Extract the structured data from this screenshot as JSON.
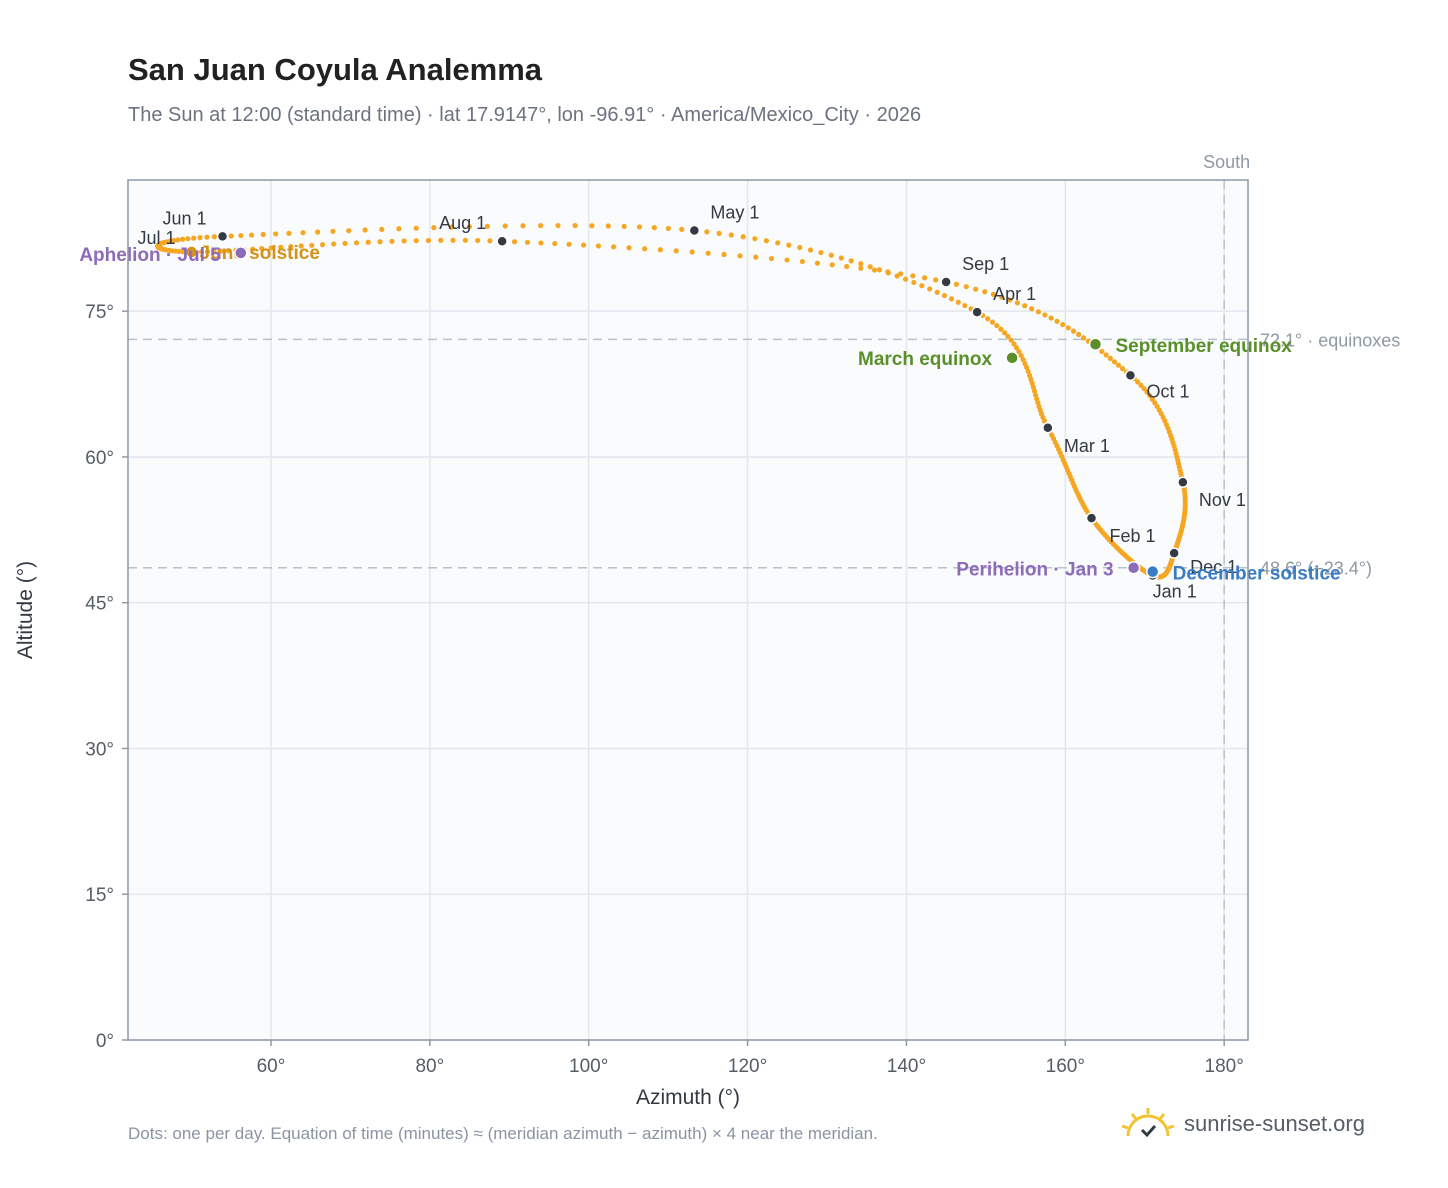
{
  "title": "San Juan Coyula Analemma",
  "subtitle": "The Sun at 12:00 (standard time) · lat 17.9147°, lon -96.91° · America/Mexico_City · 2026",
  "footnote": "Dots: one per day. Equation of time (minutes) ≈ (meridian azimuth − azimuth) × 4 near the meridian.",
  "brand": {
    "name": "sunrise-sunset.org",
    "icon": "sun-logo-icon",
    "color": "#f2c230"
  },
  "colors": {
    "analemma": "#f5a623",
    "month_marker": "#333a44",
    "equinox": "#5a8f29",
    "solstice_june": "#d4921a",
    "solstice_december": "#3a7cc3",
    "apsis": "#8e6bb8",
    "reference_line": "#b7c3cc",
    "plot_bg": "#f9fbfd",
    "grid": "#e3e8ee",
    "axis": "#8e99a6"
  },
  "chart_data": {
    "type": "scatter",
    "title": "San Juan Coyula Analemma",
    "xlabel": "Azimuth (°)",
    "ylabel": "Altitude (°)",
    "xlim": [
      42,
      183
    ],
    "ylim": [
      0,
      88.5
    ],
    "xticks": [
      60,
      80,
      100,
      120,
      140,
      160,
      180
    ],
    "xtick_labels": [
      "60°",
      "80°",
      "100°",
      "120°",
      "140°",
      "160°",
      "180°"
    ],
    "yticks": [
      0,
      15,
      30,
      45,
      60,
      75
    ],
    "ytick_labels": [
      "0°",
      "15°",
      "30°",
      "45°",
      "60°",
      "75°"
    ],
    "grid": true,
    "south_line": {
      "x": 180,
      "label": "South"
    },
    "reference_lines": [
      {
        "y": 72.1,
        "label": "72.1° · equinoxes"
      },
      {
        "y": 48.6,
        "label": "48.6° (−23.4°)"
      }
    ],
    "month_markers": [
      {
        "label": "Jan 1",
        "x": 171.0,
        "y": 47.8
      },
      {
        "label": "Feb 1",
        "x": 163.3,
        "y": 53.7
      },
      {
        "label": "Mar 1",
        "x": 157.8,
        "y": 63.0
      },
      {
        "label": "Apr 1",
        "x": 148.9,
        "y": 74.9
      },
      {
        "label": "May 1",
        "x": 113.3,
        "y": 83.3
      },
      {
        "label": "Jun 1",
        "x": 53.9,
        "y": 82.7
      },
      {
        "label": "Jul 1",
        "x": 50.0,
        "y": 81.1
      },
      {
        "label": "Aug 1",
        "x": 89.1,
        "y": 82.2
      },
      {
        "label": "Sep 1",
        "x": 145.0,
        "y": 78.0
      },
      {
        "label": "Oct 1",
        "x": 168.2,
        "y": 68.4
      },
      {
        "label": "Nov 1",
        "x": 174.8,
        "y": 57.4
      },
      {
        "label": "Dec 1",
        "x": 173.7,
        "y": 50.1
      }
    ],
    "events": [
      {
        "label": "March equinox",
        "x": 153.3,
        "y": 70.2,
        "kind": "equinox"
      },
      {
        "label": "September equinox",
        "x": 163.8,
        "y": 71.6,
        "kind": "equinox"
      },
      {
        "label": "June solstice",
        "x": 50.0,
        "y": 81.1,
        "kind": "solstice_june"
      },
      {
        "label": "December solstice",
        "x": 171.0,
        "y": 48.2,
        "kind": "solstice_december"
      },
      {
        "label": "Perihelion · Jan 3",
        "x": 168.6,
        "y": 48.6,
        "kind": "apsis"
      },
      {
        "label": "Aphelion · Jul 5",
        "x": 56.2,
        "y": 81.0,
        "kind": "apsis"
      }
    ],
    "y_axis_label": "Altitude (°)",
    "x_axis_label": "Azimuth (°)"
  }
}
